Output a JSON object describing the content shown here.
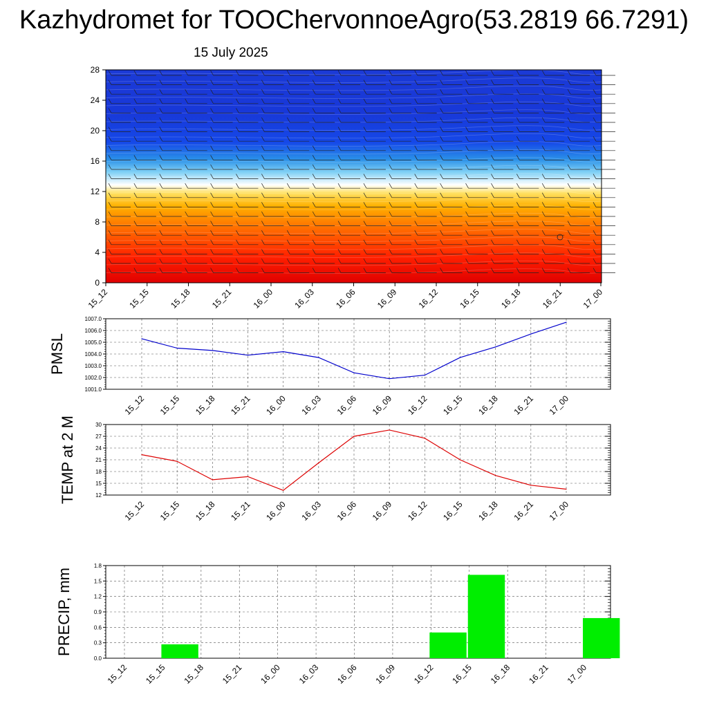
{
  "title": "Kazhydromet for TOOChervonnoeAgro(53.2819 66.7291)",
  "subtitle": "15 July 2025",
  "chart_data": [
    {
      "type": "heatmap",
      "name": "vertical-profile",
      "x_categories": [
        "15_12",
        "15_15",
        "15_18",
        "15_21",
        "16_00",
        "16_03",
        "16_06",
        "16_09",
        "16_12",
        "16_15",
        "16_18",
        "16_21",
        "17_00"
      ],
      "y_ticks": [
        0,
        4,
        8,
        12,
        16,
        20,
        24,
        28
      ],
      "ylim": [
        0,
        28
      ],
      "colors": [
        "#e80000",
        "#ff6a00",
        "#ffd500",
        "#ffffff",
        "#35a8ee",
        "#1540e8",
        "#1d35d6"
      ]
    },
    {
      "type": "line",
      "name": "pmsl",
      "ylabel": "PMSL",
      "categories": [
        "15_12",
        "15_15",
        "15_18",
        "15_21",
        "16_00",
        "16_03",
        "16_06",
        "16_09",
        "16_12",
        "16_15",
        "16_18",
        "16_21",
        "17_00"
      ],
      "values": [
        1005.3,
        1004.5,
        1004.3,
        1003.9,
        1004.2,
        1003.7,
        1002.4,
        1001.9,
        1002.2,
        1003.7,
        1004.6,
        1005.7,
        1006.7
      ],
      "ylim": [
        1001,
        1007
      ],
      "y_ticks": [
        "1001.0",
        "1002.0",
        "1003.0",
        "1004.0",
        "1005.0",
        "1006.0",
        "1007.0"
      ],
      "color": "#0000cc",
      "grid": true
    },
    {
      "type": "line",
      "name": "temp",
      "ylabel": "TEMP at 2 M",
      "categories": [
        "15_12",
        "15_15",
        "15_18",
        "15_21",
        "16_00",
        "16_03",
        "16_06",
        "16_09",
        "16_12",
        "16_15",
        "16_18",
        "16_21",
        "17_00"
      ],
      "values": [
        22.3,
        20.6,
        15.9,
        16.7,
        13.2,
        20.2,
        27.0,
        28.6,
        26.5,
        21.0,
        17.0,
        14.5,
        13.5
      ],
      "ylim": [
        12,
        30
      ],
      "y_ticks": [
        "12",
        "15",
        "18",
        "21",
        "24",
        "27",
        "30"
      ],
      "color": "#dd0000",
      "grid": true
    },
    {
      "type": "bar",
      "name": "precip",
      "ylabel": "PRECIP, mm",
      "categories": [
        "15_12",
        "15_15",
        "15_18",
        "15_21",
        "16_00",
        "16_03",
        "16_06",
        "16_09",
        "16_12",
        "16_15",
        "16_18",
        "16_21",
        "17_00"
      ],
      "values": [
        0,
        0.27,
        0,
        0,
        0,
        0,
        0,
        0,
        0.5,
        1.62,
        0,
        0,
        0.78
      ],
      "ylim": [
        0,
        1.8
      ],
      "y_ticks": [
        "0.0",
        "0.3",
        "0.6",
        "0.9",
        "1.2",
        "1.5",
        "1.8"
      ],
      "color": "#00ee00",
      "grid": true
    }
  ]
}
